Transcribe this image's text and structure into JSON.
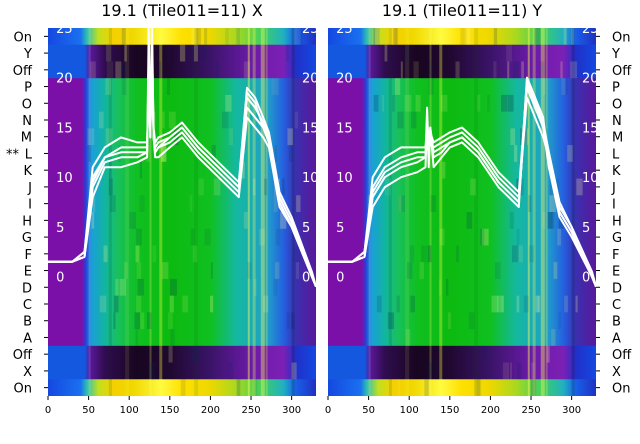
{
  "chart_data": [
    {
      "type": "heatmap",
      "title": "19.1 (Tile011=11) X",
      "xlabel": "",
      "ylabel": "",
      "xlim": [
        0,
        330
      ],
      "ylim": [
        -12,
        25
      ],
      "x_ticks": [
        0,
        50,
        100,
        150,
        200,
        250,
        300
      ],
      "y_ticks": [
        0,
        5,
        10,
        15,
        20,
        25
      ],
      "row_labels_left": [
        "On",
        "X",
        "Off",
        "A",
        "B",
        "C",
        "D",
        "E",
        "F",
        "G",
        "H",
        "I",
        "J",
        "K",
        "L",
        "M",
        "N",
        "O",
        "P",
        "Off",
        "Y",
        "On"
      ],
      "marked_row": {
        "row": "L",
        "marker": "**"
      },
      "series": [
        {
          "x": [
            0,
            30,
            45,
            55,
            70,
            90,
            110,
            122,
            124,
            126,
            128,
            130,
            132,
            136,
            150,
            165,
            185,
            210,
            235,
            245,
            255,
            265,
            272,
            285,
            300,
            325,
            330
          ],
          "y": [
            1.5,
            1.5,
            2,
            8,
            11,
            11,
            11.5,
            12,
            25,
            14,
            26,
            14,
            12,
            12,
            13,
            14,
            12,
            10,
            8,
            16,
            15,
            14,
            13,
            7,
            5,
            0,
            -1
          ]
        },
        {
          "x": [
            0,
            30,
            45,
            55,
            70,
            90,
            110,
            122,
            124,
            126,
            128,
            130,
            132,
            136,
            150,
            165,
            185,
            210,
            235,
            245,
            255,
            265,
            272,
            285,
            300,
            325,
            330
          ],
          "y": [
            1.5,
            1.5,
            2,
            9,
            11.5,
            12,
            12,
            12.5,
            22,
            14,
            24,
            14,
            12.5,
            13,
            13.5,
            14.5,
            12.5,
            10.5,
            8.5,
            17,
            16,
            15,
            13.5,
            7.5,
            5,
            0,
            -1
          ]
        },
        {
          "x": [
            0,
            30,
            45,
            55,
            70,
            90,
            110,
            122,
            124,
            126,
            128,
            130,
            132,
            136,
            150,
            165,
            185,
            210,
            235,
            245,
            255,
            265,
            272,
            285,
            300,
            325,
            330
          ],
          "y": [
            1.5,
            1.5,
            2,
            10,
            12,
            13,
            13,
            13,
            20,
            14,
            22,
            14,
            13,
            13.5,
            14,
            15,
            13,
            11,
            9,
            18,
            17,
            15.5,
            14,
            8,
            5.5,
            0,
            -1
          ]
        },
        {
          "x": [
            0,
            30,
            45,
            55,
            70,
            90,
            110,
            122,
            124,
            126,
            128,
            130,
            132,
            136,
            150,
            165,
            185,
            210,
            235,
            245,
            255,
            265,
            272,
            285,
            300,
            325,
            330
          ],
          "y": [
            1.5,
            1.5,
            2.5,
            11,
            13,
            14,
            13.5,
            13.5,
            18,
            15,
            20,
            15,
            13.5,
            14,
            14.5,
            15.5,
            13.5,
            11.5,
            9.5,
            19,
            18,
            16,
            14.5,
            8.5,
            6,
            0.5,
            -1
          ]
        },
        {
          "x": [
            0,
            30,
            45,
            55,
            70,
            90,
            110,
            122,
            124,
            126,
            128,
            130,
            132,
            136,
            150,
            165,
            185,
            210,
            235,
            245,
            255,
            265,
            272,
            285,
            300,
            325,
            330
          ],
          "y": [
            1.5,
            1.5,
            2.5,
            9.5,
            12,
            12.5,
            12.5,
            12.5,
            21,
            14.5,
            23,
            14.5,
            12.5,
            13,
            14,
            15,
            13,
            11,
            9,
            18.5,
            17.5,
            15,
            14,
            8,
            5.5,
            0,
            -1
          ]
        }
      ]
    },
    {
      "type": "heatmap",
      "title": "19.1 (Tile011=11) Y",
      "xlabel": "",
      "ylabel": "",
      "xlim": [
        0,
        330
      ],
      "ylim": [
        -12,
        25
      ],
      "x_ticks": [
        0,
        50,
        100,
        150,
        200,
        250,
        300
      ],
      "y_ticks": [
        0,
        5,
        10,
        15,
        20,
        25
      ],
      "row_labels_right": [
        "On",
        "X",
        "Off",
        "A",
        "B",
        "C",
        "D",
        "E",
        "F",
        "G",
        "H",
        "I",
        "J",
        "K",
        "L",
        "M",
        "N",
        "O",
        "P",
        "Off",
        "Y",
        "On"
      ],
      "series": [
        {
          "x": [
            0,
            30,
            45,
            55,
            70,
            90,
            110,
            120,
            122,
            124,
            126,
            130,
            140,
            150,
            165,
            185,
            210,
            235,
            245,
            255,
            265,
            272,
            285,
            300,
            325,
            330
          ],
          "y": [
            1.5,
            1.5,
            2,
            7,
            9,
            10,
            10.5,
            11,
            16,
            11,
            15,
            11,
            12,
            13,
            13.5,
            12,
            9,
            7,
            20,
            18,
            16,
            11,
            6,
            4,
            0,
            -1
          ]
        },
        {
          "x": [
            0,
            30,
            45,
            55,
            70,
            90,
            110,
            120,
            122,
            124,
            126,
            130,
            140,
            150,
            165,
            185,
            210,
            235,
            245,
            255,
            265,
            272,
            285,
            300,
            325,
            330
          ],
          "y": [
            1.5,
            1.5,
            2,
            8,
            10,
            11,
            11.5,
            12,
            15,
            12,
            14,
            12,
            12.5,
            13.5,
            14,
            12.5,
            9.5,
            7.5,
            19,
            17,
            15,
            11.5,
            6.5,
            4.5,
            0,
            -1
          ]
        },
        {
          "x": [
            0,
            30,
            45,
            55,
            70,
            90,
            110,
            120,
            122,
            124,
            126,
            130,
            140,
            150,
            165,
            185,
            210,
            235,
            245,
            255,
            265,
            272,
            285,
            300,
            325,
            330
          ],
          "y": [
            1.5,
            1.5,
            2.5,
            9,
            11,
            12,
            12.5,
            12.5,
            14,
            13,
            13.5,
            13,
            13.5,
            14,
            14.5,
            13,
            10,
            8,
            18,
            16,
            14,
            12,
            7,
            5,
            0.5,
            -1
          ]
        },
        {
          "x": [
            0,
            30,
            45,
            55,
            70,
            90,
            110,
            120,
            122,
            124,
            126,
            130,
            140,
            150,
            165,
            185,
            210,
            235,
            245,
            255,
            265,
            272,
            285,
            300,
            325,
            330
          ],
          "y": [
            1.5,
            1.5,
            2.5,
            10,
            12,
            13,
            13,
            13,
            15.5,
            13.5,
            14.5,
            13.5,
            14,
            14.5,
            15,
            13.5,
            10.5,
            8.5,
            19.5,
            17.5,
            15.5,
            12.5,
            7.5,
            5,
            0.5,
            -1
          ]
        },
        {
          "x": [
            0,
            30,
            45,
            55,
            70,
            90,
            110,
            120,
            122,
            124,
            126,
            130,
            140,
            150,
            165,
            185,
            210,
            235,
            245,
            255,
            265,
            272,
            285,
            300,
            325,
            330
          ],
          "y": [
            1.5,
            1.5,
            2,
            8.5,
            10.5,
            11.5,
            12,
            12,
            17,
            12.5,
            15,
            12.5,
            13,
            13.5,
            14,
            12.5,
            9.5,
            7.5,
            20,
            18,
            15,
            11,
            6.5,
            4.5,
            0,
            -1
          ]
        }
      ]
    }
  ]
}
